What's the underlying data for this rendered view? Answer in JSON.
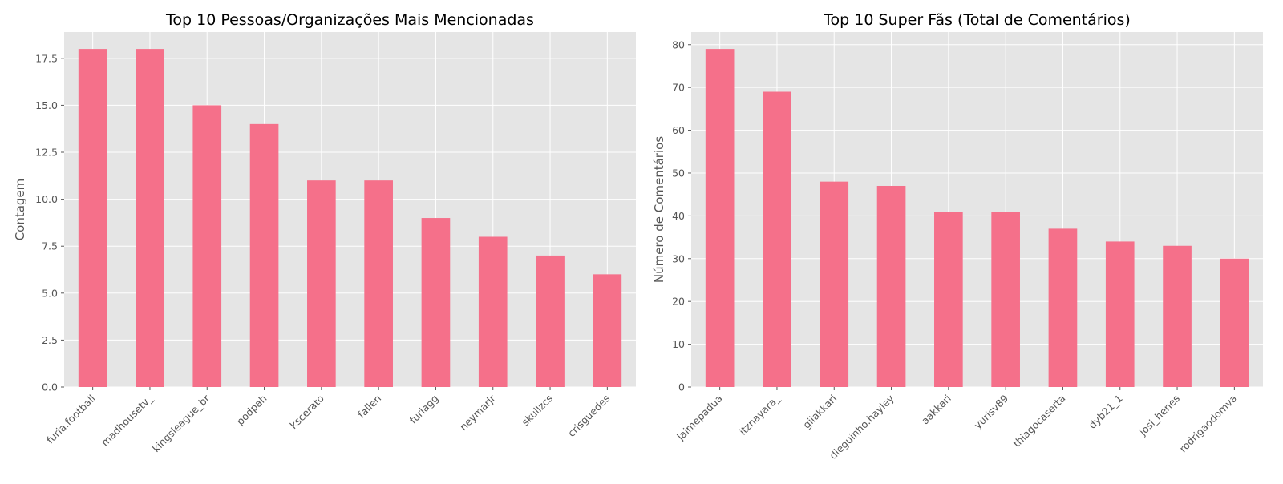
{
  "chart_data": [
    {
      "type": "bar",
      "title": "Top 10 Pessoas/Organizações Mais Mencionadas",
      "xlabel": "",
      "ylabel": "Contagem",
      "categories": [
        "furia.football",
        "madhousetv_",
        "kingsleague_br",
        "podpah",
        "kscerato",
        "fallen",
        "furiagg",
        "neymarjr",
        "skullzcs",
        "crisguedes"
      ],
      "values": [
        18,
        18,
        15,
        14,
        11,
        11,
        9,
        8,
        7,
        6
      ],
      "ylim": [
        0,
        18.9
      ],
      "yticks": [
        "0.0",
        "2.5",
        "5.0",
        "7.5",
        "10.0",
        "12.5",
        "15.0",
        "17.5"
      ],
      "bar_color": "#F5708A",
      "grid": true
    },
    {
      "type": "bar",
      "title": "Top 10 Super Fãs (Total de Comentários)",
      "xlabel": "",
      "ylabel": "Número de Comentários",
      "categories": [
        "jaimepadua",
        "itznayara_",
        "giiakkari",
        "dieguinho.hayley",
        "aakkari",
        "yurisv89",
        "thiagocaserta",
        "dyb21_1",
        "josi_henes",
        "rodrigaodomva"
      ],
      "values": [
        79,
        69,
        48,
        47,
        41,
        41,
        37,
        34,
        33,
        30
      ],
      "ylim": [
        0,
        82.95
      ],
      "yticks": [
        "0",
        "10",
        "20",
        "30",
        "40",
        "50",
        "60",
        "70",
        "80"
      ],
      "bar_color": "#F5708A",
      "grid": true
    }
  ]
}
